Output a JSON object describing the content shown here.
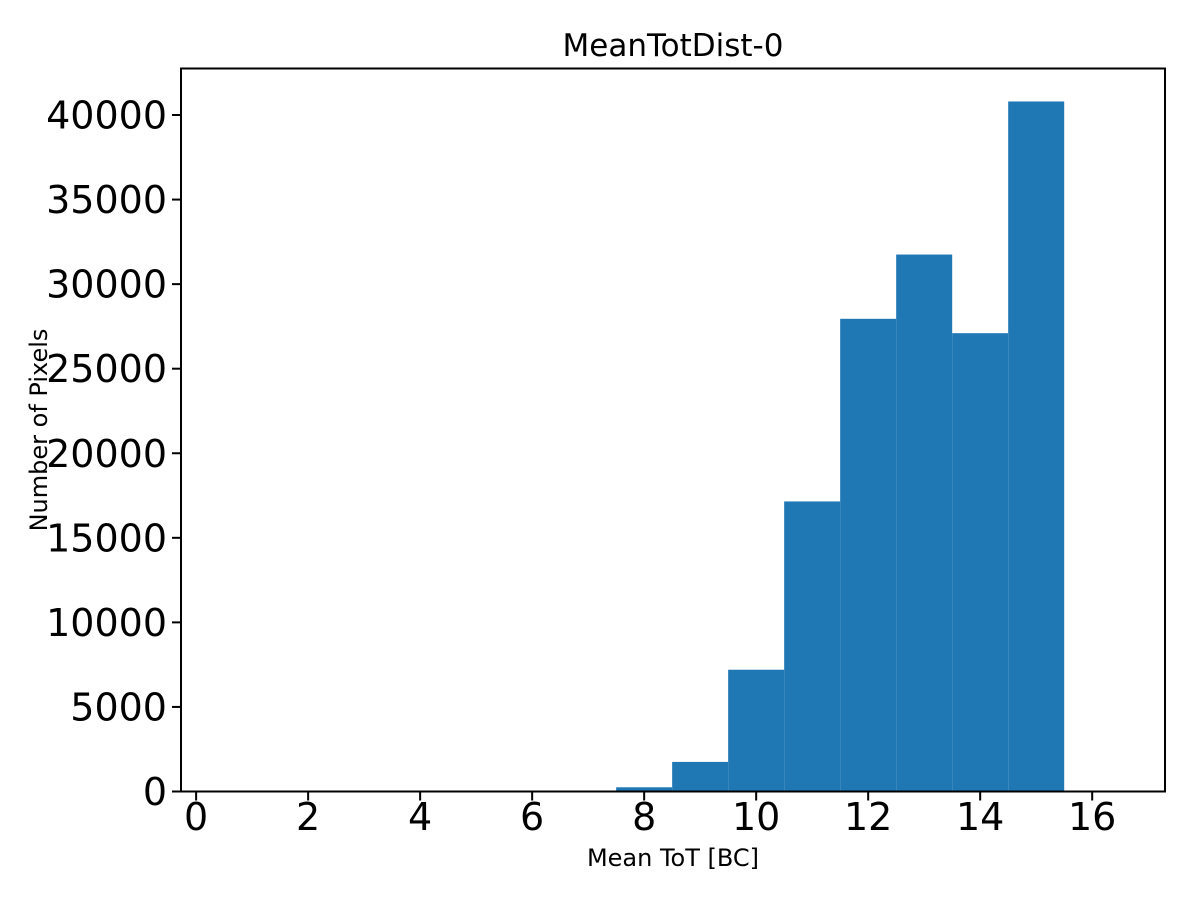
{
  "chart_data": {
    "type": "bar",
    "subtype": "histogram",
    "title": "MeanTotDist-0",
    "xlabel": "Mean ToT [BC]",
    "ylabel": "Number of Pixels",
    "bin_edges": [
      7.5,
      8.5,
      9.5,
      10.5,
      11.5,
      12.5,
      13.5,
      14.5,
      15.5
    ],
    "bin_centers": [
      8,
      9,
      10,
      11,
      12,
      13,
      14,
      15
    ],
    "counts": [
      250,
      1750,
      7200,
      17150,
      27950,
      31750,
      27100,
      40800
    ],
    "bar_color": "#1f77b4",
    "text_color": "#000000",
    "background_color": "#ffffff",
    "xlim": [
      -0.27,
      17.3
    ],
    "ylim": [
      0,
      42750
    ],
    "xticks": [
      0,
      2,
      4,
      6,
      8,
      10,
      12,
      14,
      16
    ],
    "yticks": [
      0,
      5000,
      10000,
      15000,
      20000,
      25000,
      30000,
      35000,
      40000
    ],
    "grid": false,
    "legend_position": "none"
  }
}
